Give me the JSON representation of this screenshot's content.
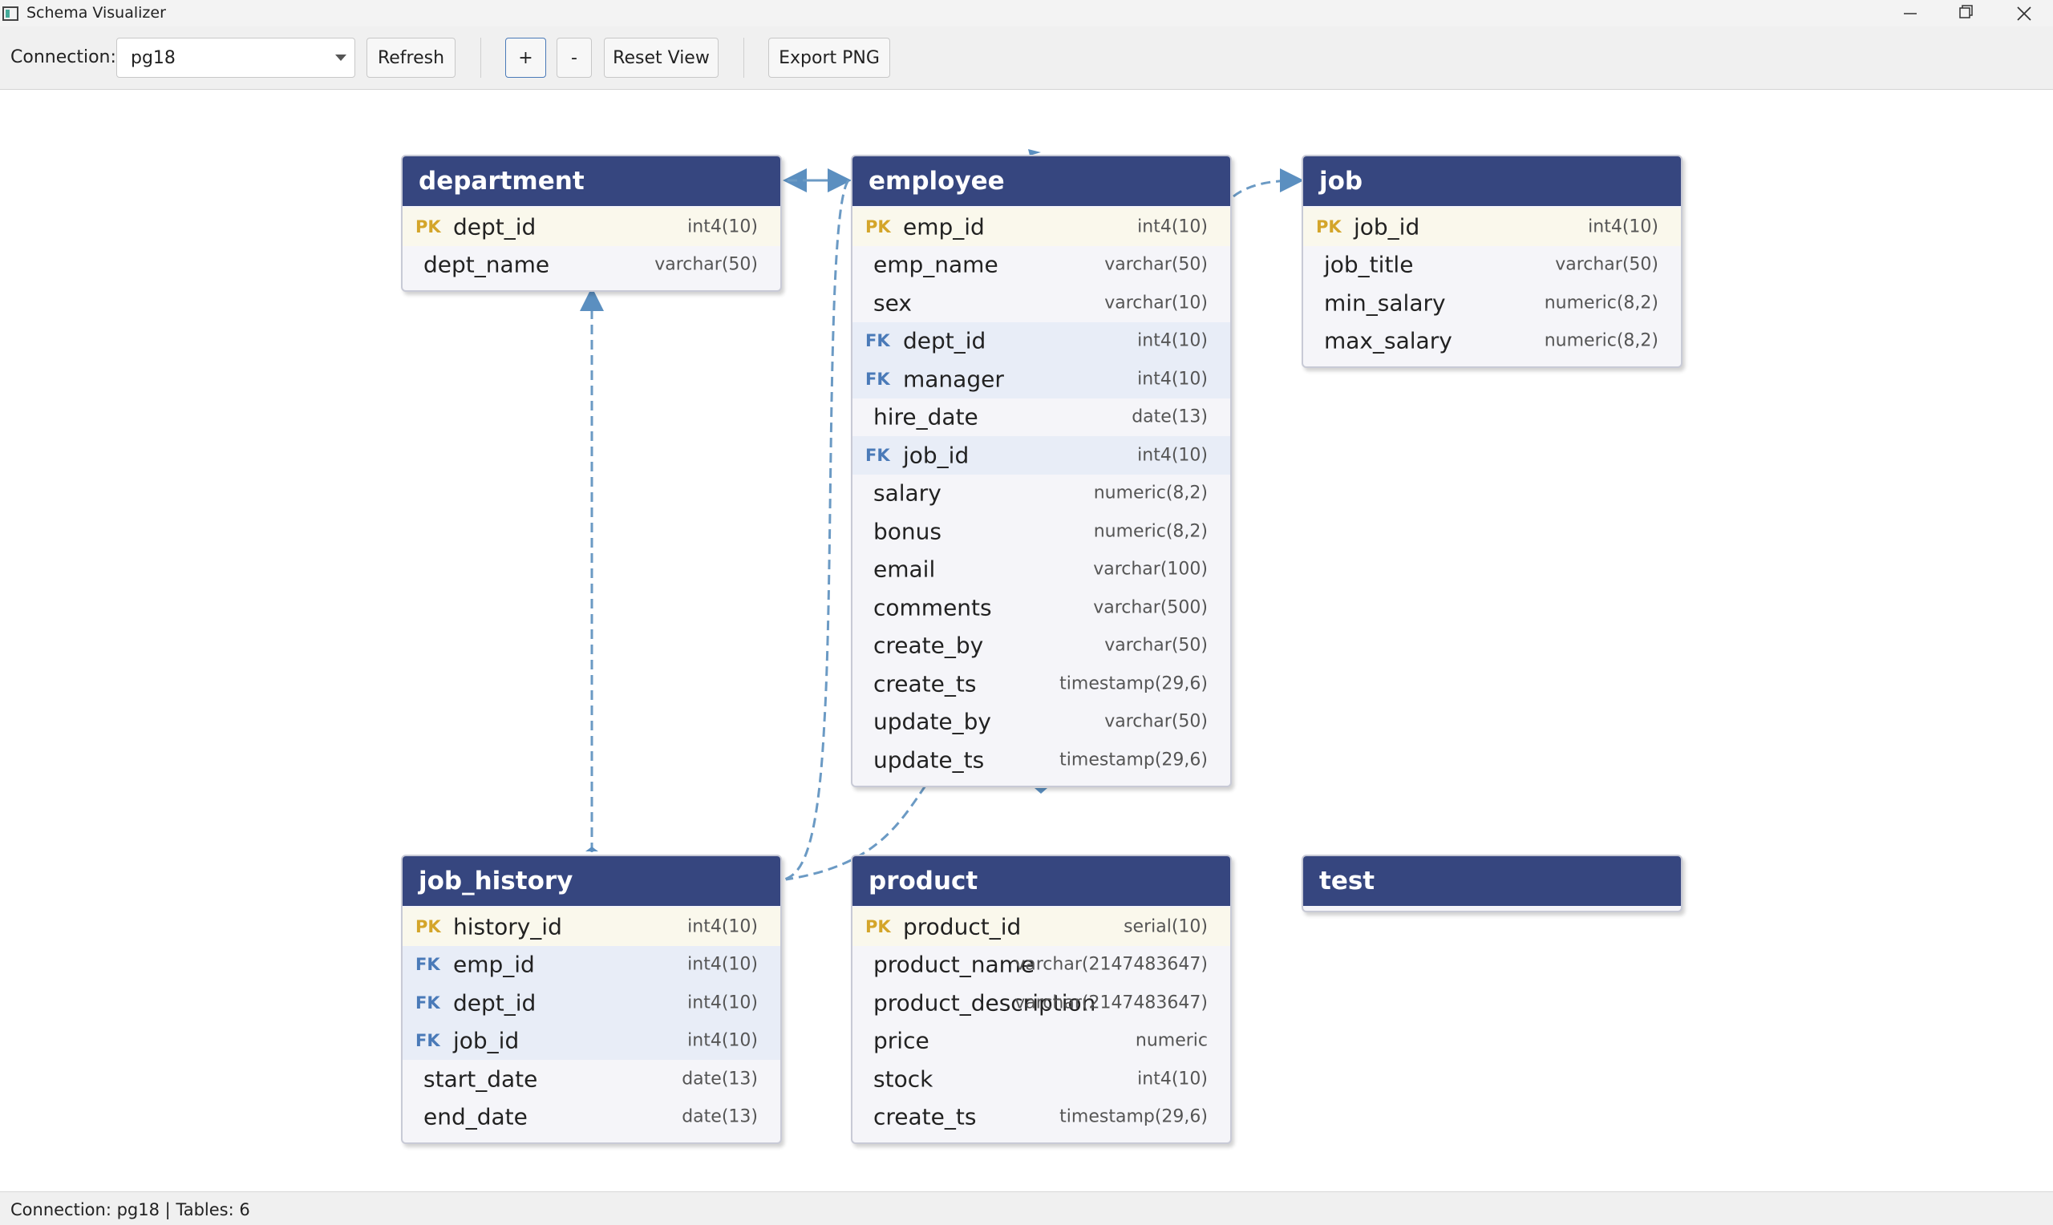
{
  "window": {
    "title": "Schema Visualizer"
  },
  "toolbar": {
    "connection_label": "Connection:",
    "connection": "pg18",
    "refresh": "Refresh",
    "zoom_in": "+",
    "zoom_out": "-",
    "reset_view": "Reset View",
    "export": "Export PNG"
  },
  "tables": [
    {
      "name": "department",
      "columns": [
        {
          "key": "PK",
          "name": "dept_id",
          "type": "int4(10)"
        },
        {
          "name": "dept_name",
          "type": "varchar(50)"
        }
      ]
    },
    {
      "name": "employee",
      "columns": [
        {
          "key": "PK",
          "name": "emp_id",
          "type": "int4(10)"
        },
        {
          "name": "emp_name",
          "type": "varchar(50)"
        },
        {
          "name": "sex",
          "type": "varchar(10)"
        },
        {
          "key": "FK",
          "name": "dept_id",
          "type": "int4(10)"
        },
        {
          "key": "FK",
          "name": "manager",
          "type": "int4(10)"
        },
        {
          "name": "hire_date",
          "type": "date(13)"
        },
        {
          "key": "FK",
          "name": "job_id",
          "type": "int4(10)"
        },
        {
          "name": "salary",
          "type": "numeric(8,2)"
        },
        {
          "name": "bonus",
          "type": "numeric(8,2)"
        },
        {
          "name": "email",
          "type": "varchar(100)"
        },
        {
          "name": "comments",
          "type": "varchar(500)"
        },
        {
          "name": "create_by",
          "type": "varchar(50)"
        },
        {
          "name": "create_ts",
          "type": "timestamp(29,6)"
        },
        {
          "name": "update_by",
          "type": "varchar(50)"
        },
        {
          "name": "update_ts",
          "type": "timestamp(29,6)"
        }
      ]
    },
    {
      "name": "job",
      "columns": [
        {
          "key": "PK",
          "name": "job_id",
          "type": "int4(10)"
        },
        {
          "name": "job_title",
          "type": "varchar(50)"
        },
        {
          "name": "min_salary",
          "type": "numeric(8,2)"
        },
        {
          "name": "max_salary",
          "type": "numeric(8,2)"
        }
      ]
    },
    {
      "name": "job_history",
      "columns": [
        {
          "key": "PK",
          "name": "history_id",
          "type": "int4(10)"
        },
        {
          "key": "FK",
          "name": "emp_id",
          "type": "int4(10)"
        },
        {
          "key": "FK",
          "name": "dept_id",
          "type": "int4(10)"
        },
        {
          "key": "FK",
          "name": "job_id",
          "type": "int4(10)"
        },
        {
          "name": "start_date",
          "type": "date(13)"
        },
        {
          "name": "end_date",
          "type": "date(13)"
        }
      ]
    },
    {
      "name": "product",
      "columns": [
        {
          "key": "PK",
          "name": "product_id",
          "type": "serial(10)"
        },
        {
          "name": "product_name",
          "type": "varchar(2147483647)"
        },
        {
          "name": "product_description",
          "type": "varchar(2147483647)"
        },
        {
          "name": "price",
          "type": "numeric"
        },
        {
          "name": "stock",
          "type": "int4(10)"
        },
        {
          "name": "create_ts",
          "type": "timestamp(29,6)"
        }
      ]
    },
    {
      "name": "test",
      "columns": []
    }
  ],
  "status": "Connection: pg18 | Tables: 6"
}
